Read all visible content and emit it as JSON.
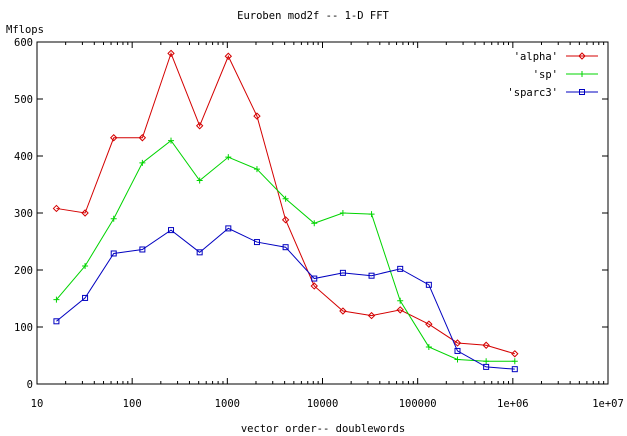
{
  "chart_data": {
    "type": "line",
    "title": "Euroben mod2f -- 1-D FFT",
    "ylabel": "Mflops",
    "xlabel": "vector order-- doublewords",
    "xscale": "log",
    "xlim": [
      10,
      10000000
    ],
    "ylim": [
      0,
      600
    ],
    "grid": false,
    "legend_position": "top-right",
    "x_ticks": [
      {
        "value": 10,
        "label": "10"
      },
      {
        "value": 100,
        "label": "100"
      },
      {
        "value": 1000,
        "label": "1000"
      },
      {
        "value": 10000,
        "label": "10000"
      },
      {
        "value": 100000,
        "label": "100000"
      },
      {
        "value": 1000000,
        "label": "1e+06"
      },
      {
        "value": 10000000,
        "label": "1e+07"
      }
    ],
    "y_ticks": [
      {
        "value": 0,
        "label": "0"
      },
      {
        "value": 100,
        "label": "100"
      },
      {
        "value": 200,
        "label": "200"
      },
      {
        "value": 300,
        "label": "300"
      },
      {
        "value": 400,
        "label": "400"
      },
      {
        "value": 500,
        "label": "500"
      },
      {
        "value": 600,
        "label": "600"
      }
    ],
    "x": [
      16,
      32,
      64,
      128,
      256,
      512,
      1024,
      2048,
      4096,
      8192,
      16384,
      32768,
      65536,
      131072,
      262144,
      524288,
      1048576
    ],
    "series": [
      {
        "name": "'alpha'",
        "color": "#d40000",
        "marker": "diamond",
        "values": [
          308,
          300,
          432,
          432,
          580,
          453,
          575,
          470,
          288,
          172,
          128,
          120,
          130,
          105,
          72,
          68,
          53
        ]
      },
      {
        "name": "'sp'",
        "color": "#00d400",
        "marker": "plus",
        "values": [
          148,
          207,
          290,
          388,
          427,
          357,
          398,
          377,
          325,
          282,
          300,
          298,
          146,
          65,
          43,
          40,
          40
        ]
      },
      {
        "name": "'sparc3'",
        "color": "#0000c0",
        "marker": "square",
        "values": [
          110,
          151,
          229,
          236,
          270,
          231,
          273,
          249,
          240,
          185,
          195,
          190,
          202,
          174,
          58,
          30,
          26
        ]
      }
    ]
  }
}
